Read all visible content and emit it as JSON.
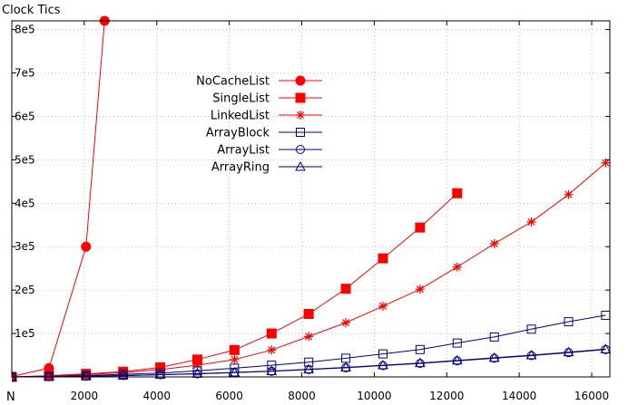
{
  "chart_data": {
    "type": "line",
    "ylabel": "Clock Tics",
    "xlabel": "N",
    "xlim": [
      0,
      16500
    ],
    "ylim": [
      0,
      820000
    ],
    "x_ticks": [
      2000,
      4000,
      6000,
      8000,
      10000,
      12000,
      14000,
      16000
    ],
    "y_ticks": [
      100000,
      200000,
      300000,
      400000,
      500000,
      600000,
      700000,
      800000
    ],
    "x_tick_labels": [
      "2000",
      "4000",
      "6000",
      "8000",
      "10000",
      "12000",
      "14000",
      "16000"
    ],
    "y_tick_labels": [
      "1e5",
      "2e5",
      "3e5",
      "4e5",
      "5e5",
      "6e5",
      "7e5",
      "8e5"
    ],
    "grid": true,
    "legend_position": "top-left",
    "series": [
      {
        "name": "NoCacheList",
        "color": "#ff0000",
        "marker": "filled-circle",
        "x": [
          0,
          1024,
          2048,
          2560
        ],
        "y": [
          1000,
          20000,
          300000,
          820000
        ]
      },
      {
        "name": "SingleList",
        "color": "#ff0000",
        "marker": "filled-square",
        "x": [
          0,
          1024,
          2048,
          3072,
          4096,
          5120,
          6144,
          7168,
          8192,
          9216,
          10240,
          11264,
          12288
        ],
        "y": [
          0,
          3000,
          7000,
          12000,
          22000,
          40000,
          62000,
          100000,
          145000,
          203000,
          273000,
          344000,
          423000
        ]
      },
      {
        "name": "LinkedList",
        "color": "#ff0000",
        "marker": "star",
        "x": [
          0,
          1024,
          2048,
          3072,
          4096,
          5120,
          6144,
          7168,
          8192,
          9216,
          10240,
          11264,
          12288,
          13312,
          14336,
          15360,
          16384
        ],
        "y": [
          0,
          2000,
          5000,
          10000,
          17000,
          27000,
          40000,
          62000,
          93000,
          125000,
          163000,
          202000,
          253000,
          307000,
          357000,
          420000,
          493000
        ]
      },
      {
        "name": "ArrayBlock",
        "color": "#000080",
        "marker": "open-square",
        "x": [
          0,
          1024,
          2048,
          3072,
          4096,
          5120,
          6144,
          7168,
          8192,
          9216,
          10240,
          11264,
          12288,
          13312,
          14336,
          15360,
          16384
        ],
        "y": [
          0,
          1000,
          3000,
          6000,
          9000,
          14000,
          20000,
          27000,
          34000,
          43000,
          53000,
          63000,
          78000,
          92000,
          110000,
          127000,
          142000
        ]
      },
      {
        "name": "ArrayList",
        "color": "#000080",
        "marker": "open-circle",
        "x": [
          0,
          1024,
          2048,
          3072,
          4096,
          5120,
          6144,
          7168,
          8192,
          9216,
          10240,
          11264,
          12288,
          13312,
          14336,
          15360,
          16384
        ],
        "y": [
          0,
          500,
          1500,
          3000,
          5000,
          7000,
          10000,
          13000,
          17000,
          21000,
          26000,
          31000,
          37000,
          43000,
          49000,
          56000,
          63000
        ]
      },
      {
        "name": "ArrayRing",
        "color": "#000080",
        "marker": "open-triangle",
        "x": [
          0,
          1024,
          2048,
          3072,
          4096,
          5120,
          6144,
          7168,
          8192,
          9216,
          10240,
          11264,
          12288,
          13312,
          14336,
          15360,
          16384
        ],
        "y": [
          0,
          500,
          1600,
          3200,
          5200,
          7500,
          10500,
          13500,
          17500,
          22000,
          27000,
          32000,
          38000,
          44000,
          50000,
          57000,
          64000
        ]
      }
    ]
  }
}
